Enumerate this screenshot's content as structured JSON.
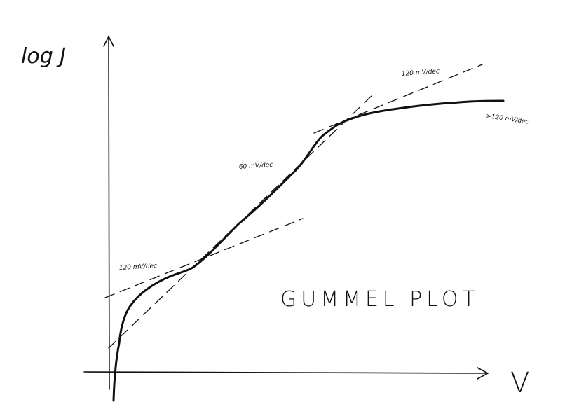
{
  "diagram": {
    "y_axis_label": "log J",
    "x_axis_label": "V",
    "title": "GUMMEL PLOT",
    "annotations": {
      "top_slope": "120 mV/dec",
      "saturation_slope": ">120 mV/dec",
      "mid_slope": "60 mV/dec",
      "low_slope": "120 mV/dec"
    }
  },
  "colors": {
    "ink": "#111111",
    "background": "#ffffff"
  }
}
